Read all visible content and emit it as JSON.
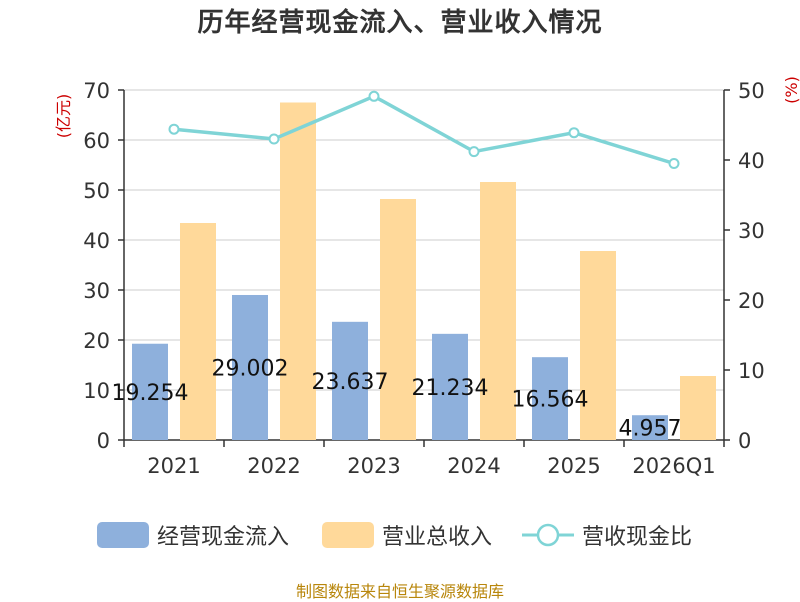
{
  "title": "历年经营现金流入、营业收入情况",
  "source": "制图数据来自恒生聚源数据库",
  "legend": {
    "cash_inflow": "经营现金流入",
    "revenue": "营业总收入",
    "ratio": "营收现金比"
  },
  "chart_data": {
    "type": "bar",
    "title": "历年经营现金流入、营业收入情况",
    "categories": [
      "2021",
      "2022",
      "2023",
      "2024",
      "2025",
      "2026Q1"
    ],
    "ylabel_left": "(亿元)",
    "ylabel_right": "(%)",
    "ylim_left": [
      0,
      70
    ],
    "ylim_right": [
      0,
      50
    ],
    "yticks_left": [
      "0",
      "10",
      "20",
      "30",
      "40",
      "50",
      "60",
      "70"
    ],
    "yticks_right": [
      "0",
      "10",
      "20",
      "30",
      "40",
      "50"
    ],
    "grid": true,
    "legend_position": "bottom",
    "series": [
      {
        "name": "经营现金流入",
        "type": "bar",
        "axis": "left",
        "color": "#8eb0dc",
        "values": [
          19.254,
          29.002,
          23.637,
          21.234,
          16.564,
          4.957
        ],
        "labels": [
          "19.254",
          "29.002",
          "23.637",
          "21.234",
          "16.564",
          "4.957"
        ]
      },
      {
        "name": "营业总收入",
        "type": "bar",
        "axis": "left",
        "color": "#ffd99a",
        "values": [
          43.4,
          67.5,
          48.2,
          51.6,
          37.8,
          12.8
        ]
      },
      {
        "name": "营收现金比",
        "type": "line",
        "axis": "right",
        "color": "#7fd4d6",
        "values": [
          44.4,
          43.0,
          49.1,
          41.2,
          43.9,
          39.5
        ]
      }
    ]
  }
}
